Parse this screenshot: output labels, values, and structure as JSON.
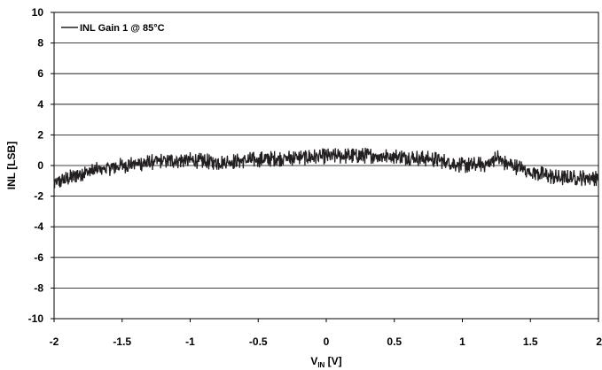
{
  "chart_data": {
    "type": "line",
    "xlabel": "V",
    "xlabel_sub": "IN",
    "xlabel_unit": " [V]",
    "ylabel": "INL [LSB]",
    "xlim": [
      -2,
      2
    ],
    "ylim": [
      -10,
      10
    ],
    "x_ticks": [
      -2,
      -1.5,
      -1,
      -0.5,
      0,
      0.5,
      1,
      1.5,
      2
    ],
    "y_ticks": [
      -10,
      -8,
      -6,
      -4,
      -2,
      0,
      2,
      4,
      6,
      8,
      10
    ],
    "grid": "horizontal",
    "legend_position": "top-left",
    "series": [
      {
        "name": "INL Gain 1 @ 85°C",
        "color": "#231f20",
        "envelope_x": [
          -2.0,
          -1.8,
          -1.5,
          -1.2,
          -1.0,
          -0.8,
          -0.5,
          0.0,
          0.3,
          0.5,
          0.8,
          1.0,
          1.2,
          1.25,
          1.3,
          1.5,
          1.7,
          2.0
        ],
        "envelope_y": [
          -1.2,
          -0.5,
          0.0,
          0.3,
          0.35,
          0.2,
          0.4,
          0.6,
          0.65,
          0.6,
          0.4,
          0.0,
          0.1,
          0.6,
          0.2,
          -0.4,
          -0.8,
          -0.8
        ],
        "noise_amplitude": 0.4
      }
    ]
  }
}
